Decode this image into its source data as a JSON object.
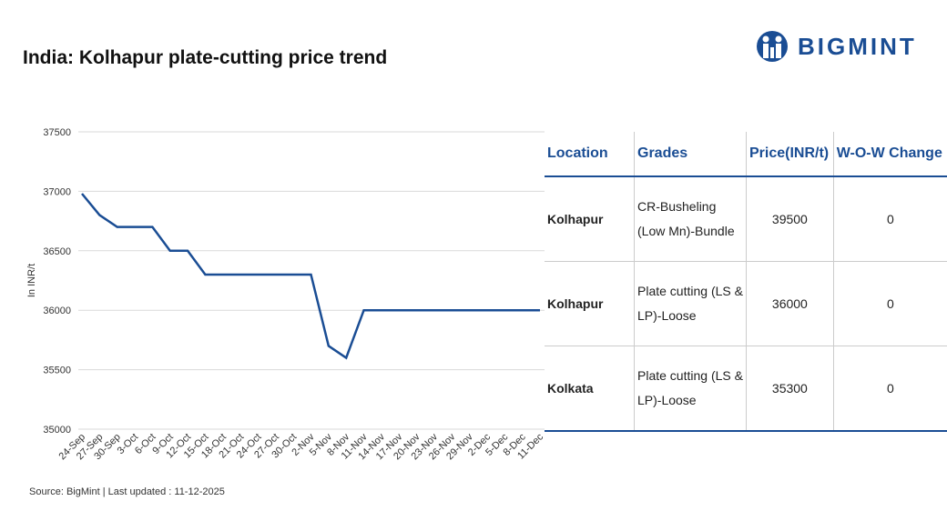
{
  "chart_data": {
    "type": "line",
    "title": "India: Kolhapur plate-cutting price trend",
    "y_label": "In INR/t",
    "categories": [
      "24-Sep",
      "27-Sep",
      "30-Sep",
      "3-Oct",
      "6-Oct",
      "9-Oct",
      "12-Oct",
      "15-Oct",
      "18-Oct",
      "21-Oct",
      "24-Oct",
      "27-Oct",
      "30-Oct",
      "2-Nov",
      "5-Nov",
      "8-Nov",
      "11-Nov",
      "14-Nov",
      "17-Nov",
      "20-Nov",
      "23-Nov",
      "26-Nov",
      "29-Nov",
      "2-Dec",
      "5-Dec",
      "8-Dec",
      "11-Dec"
    ],
    "values": [
      36980,
      36800,
      36700,
      36700,
      36700,
      36500,
      36500,
      36300,
      36300,
      36300,
      36300,
      36300,
      36300,
      36300,
      35700,
      35600,
      36000,
      36000,
      36000,
      36000,
      36000,
      36000,
      36000,
      36000,
      36000,
      36000,
      36000
    ],
    "color": "#1a4d94",
    "ylim": [
      35000,
      37500
    ],
    "yticks": [
      35000,
      35500,
      36000,
      36500,
      37000,
      37500
    ],
    "grid": true
  },
  "logo": "BIGMINT",
  "source": "Source: BigMint | Last updated : 11-12-2025",
  "table": {
    "columns": [
      "Location",
      "Grades",
      "Price(INR/t)",
      "W-O-W Change"
    ],
    "rows": [
      [
        "Kolhapur",
        "CR-Busheling (Low Mn)-Bundle",
        39500,
        0
      ],
      [
        "Kolhapur",
        "Plate cutting (LS & LP)-Loose",
        36000,
        0
      ],
      [
        "Kolkata",
        "Plate cutting (LS & LP)-Loose",
        35300,
        0
      ]
    ]
  }
}
